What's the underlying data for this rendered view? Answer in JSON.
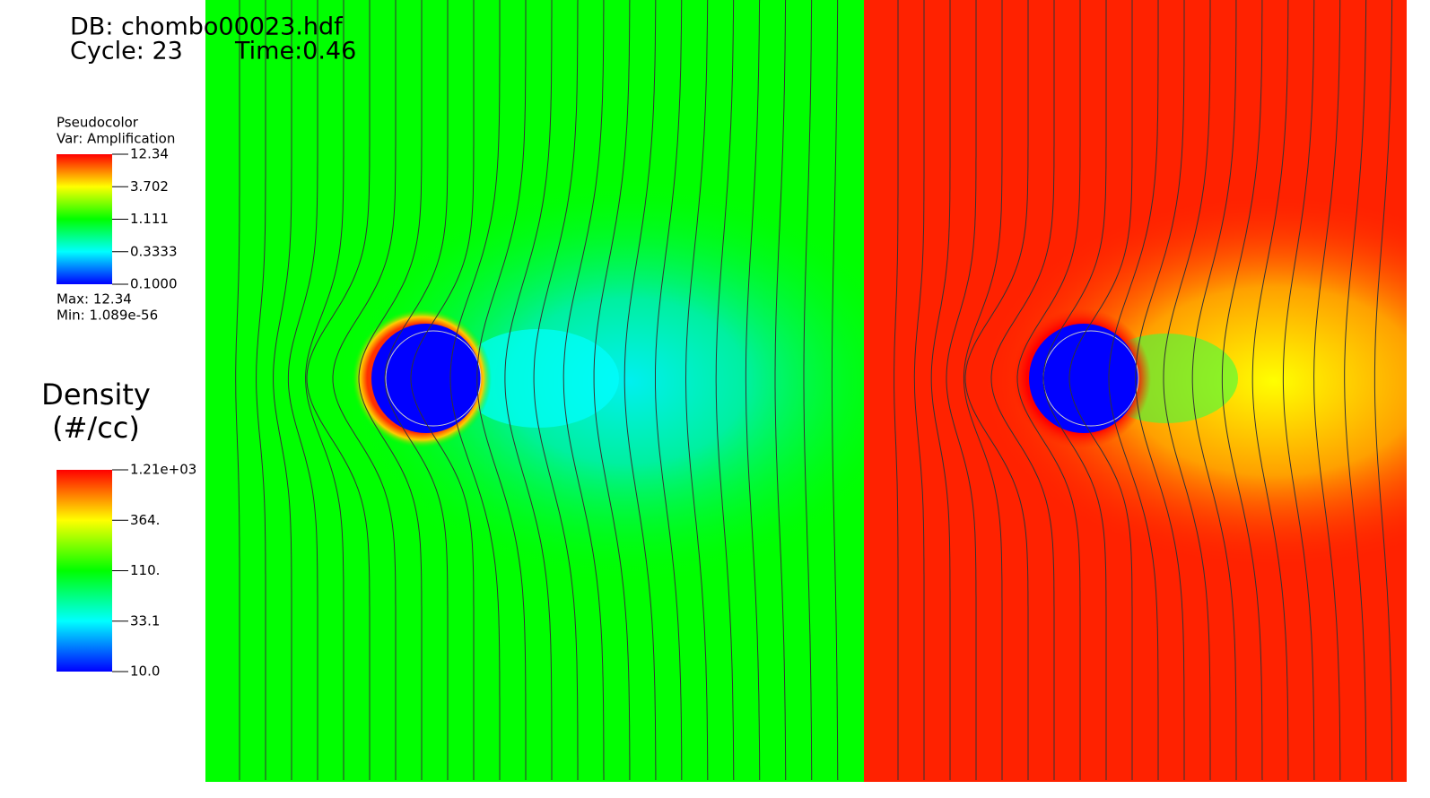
{
  "header": {
    "db": "DB: chombo00023.hdf",
    "cycle": "Cycle: 23",
    "time": "Time:0.46"
  },
  "legends": [
    {
      "title": "Pseudocolor",
      "variable": "Var: Amplification",
      "ticks": [
        "12.34",
        "3.702",
        "1.111",
        "0.3333",
        "0.1000"
      ],
      "max": "Max:  12.34",
      "min": "Min:  1.089e-56"
    },
    {
      "title": [
        "Density",
        "(#/cc)"
      ],
      "ticks": [
        "1.21e+03",
        "364.",
        "110.",
        "33.1",
        "10.0"
      ]
    }
  ]
}
